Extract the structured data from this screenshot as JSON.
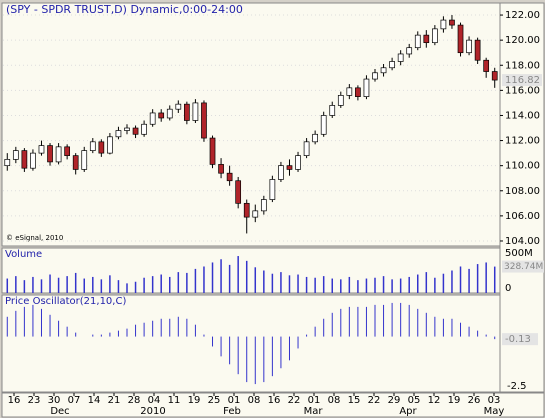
{
  "chart_data": {
    "type": "candlestick",
    "title": "(SPY - SPDR TRUST,D) Dynamic,0:00-24:00",
    "credit": "© eSignal, 2010",
    "up_color": "#ffffff",
    "down_color": "#b0242a",
    "open": [
      110.0,
      110.5,
      111.2,
      109.8,
      111.0,
      111.6,
      110.3,
      111.5,
      110.8,
      109.7,
      111.2,
      111.9,
      111.0,
      112.3,
      112.8,
      113.0,
      112.5,
      113.3,
      114.2,
      113.8,
      114.5,
      114.9,
      113.6,
      115.0,
      112.2,
      110.1,
      109.4,
      108.8,
      107.0,
      105.9,
      106.4,
      107.3,
      108.9,
      110.0,
      109.7,
      110.8,
      111.9,
      112.5,
      114.0,
      114.8,
      115.6,
      116.2,
      115.5,
      116.9,
      117.4,
      117.8,
      118.3,
      118.9,
      119.4,
      120.4,
      119.8,
      120.9,
      121.6,
      121.2,
      119.0,
      120.0,
      118.4,
      117.5
    ],
    "high": [
      111.0,
      111.5,
      111.4,
      111.3,
      112.0,
      111.8,
      111.8,
      111.7,
      111.0,
      111.5,
      112.2,
      112.1,
      112.6,
      113.1,
      113.3,
      113.2,
      113.6,
      114.5,
      114.5,
      114.8,
      115.2,
      115.1,
      115.3,
      115.2,
      112.4,
      110.6,
      110.0,
      109.1,
      107.3,
      106.9,
      107.6,
      109.2,
      110.3,
      110.5,
      111.1,
      112.2,
      112.8,
      114.3,
      115.1,
      115.9,
      116.5,
      116.4,
      117.2,
      117.7,
      118.1,
      118.6,
      119.2,
      119.7,
      120.7,
      120.8,
      121.2,
      121.9,
      122.0,
      121.4,
      120.3,
      120.2,
      118.6,
      117.8
    ],
    "low": [
      109.6,
      110.2,
      109.5,
      109.6,
      110.8,
      110.0,
      110.1,
      110.5,
      109.3,
      109.5,
      111.0,
      110.7,
      110.9,
      112.1,
      112.5,
      112.2,
      112.3,
      113.1,
      113.5,
      113.6,
      114.2,
      113.3,
      113.4,
      111.9,
      109.8,
      109.0,
      108.4,
      106.6,
      104.6,
      105.5,
      106.1,
      107.1,
      108.7,
      109.2,
      109.5,
      110.6,
      111.7,
      112.3,
      113.8,
      114.6,
      115.3,
      115.2,
      115.3,
      116.7,
      117.1,
      117.6,
      118.0,
      118.6,
      119.2,
      119.4,
      119.6,
      120.6,
      120.9,
      118.7,
      118.8,
      118.1,
      117.0,
      116.2
    ],
    "close": [
      110.5,
      111.2,
      109.8,
      111.0,
      111.6,
      110.3,
      111.5,
      110.8,
      109.7,
      111.2,
      111.9,
      111.0,
      112.3,
      112.8,
      113.0,
      112.5,
      113.3,
      114.2,
      113.8,
      114.5,
      114.9,
      113.6,
      115.0,
      112.2,
      110.1,
      109.4,
      108.8,
      107.0,
      105.9,
      106.4,
      107.3,
      108.9,
      110.0,
      109.7,
      110.8,
      111.9,
      112.5,
      114.0,
      114.8,
      115.6,
      116.2,
      115.5,
      116.9,
      117.4,
      117.8,
      118.3,
      118.9,
      119.4,
      120.4,
      119.8,
      120.9,
      121.6,
      121.2,
      119.0,
      120.0,
      118.4,
      117.5,
      116.82
    ],
    "ylim": [
      103.6,
      122.96
    ],
    "yticks": [
      {
        "value": 104,
        "label": "104.00"
      },
      {
        "value": 106,
        "label": "106.00"
      },
      {
        "value": 108,
        "label": "108.00"
      },
      {
        "value": 110,
        "label": "110.00"
      },
      {
        "value": 112,
        "label": "112.00"
      },
      {
        "value": 114,
        "label": "114.00"
      },
      {
        "value": 116,
        "label": "116.00"
      },
      {
        "value": 118,
        "label": "118.00"
      },
      {
        "value": 120,
        "label": "120.00"
      },
      {
        "value": 122,
        "label": "122.00"
      }
    ],
    "volume": {
      "name": "Volume",
      "color": "#3333cc",
      "values": [
        180,
        210,
        160,
        200,
        170,
        230,
        190,
        210,
        250,
        180,
        200,
        170,
        220,
        160,
        120,
        140,
        190,
        210,
        230,
        200,
        260,
        250,
        300,
        330,
        380,
        420,
        350,
        460,
        400,
        320,
        280,
        240,
        260,
        220,
        230,
        200,
        190,
        210,
        180,
        170,
        200,
        160,
        180,
        190,
        210,
        170,
        180,
        200,
        230,
        260,
        190,
        240,
        280,
        330,
        300,
        360,
        380,
        328.74
      ],
      "value_labels": {
        "57": "328.74M"
      },
      "ylim": [
        0,
        560
      ],
      "yticks": [
        0,
        {
          "value": 500,
          "label": "500M"
        }
      ]
    },
    "oscillator": {
      "name": "Price Oscillator(21,10,C)",
      "color": "#3333cc",
      "values": [
        1.0,
        1.3,
        1.5,
        1.6,
        1.4,
        1.1,
        0.8,
        0.5,
        0.2,
        0.0,
        0.1,
        0.1,
        0.2,
        0.3,
        0.4,
        0.6,
        0.7,
        0.8,
        0.9,
        0.9,
        1.0,
        0.9,
        0.6,
        0.1,
        -0.5,
        -1.0,
        -1.4,
        -1.9,
        -2.3,
        -2.4,
        -2.3,
        -2.0,
        -1.6,
        -1.2,
        -0.6,
        0.1,
        0.5,
        0.9,
        1.2,
        1.4,
        1.5,
        1.5,
        1.5,
        1.6,
        1.6,
        1.7,
        1.7,
        1.6,
        1.4,
        1.2,
        1.0,
        0.9,
        0.9,
        0.7,
        0.5,
        0.3,
        0.1,
        -0.13
      ],
      "ylim": [
        -2.8,
        2.1
      ],
      "yticks": [
        -2.5
      ]
    },
    "xtick_labels": [
      "16",
      "23",
      "30",
      "07",
      "14",
      "21",
      "28",
      "04",
      "11",
      "19",
      "25",
      "01",
      "08",
      "16",
      "22",
      "01",
      "08",
      "15",
      "22",
      "29",
      "05",
      "12",
      "19",
      "26",
      "03"
    ],
    "month_labels": [
      "Dec",
      "2010",
      "Feb",
      "Mar",
      "Apr",
      "May"
    ]
  }
}
